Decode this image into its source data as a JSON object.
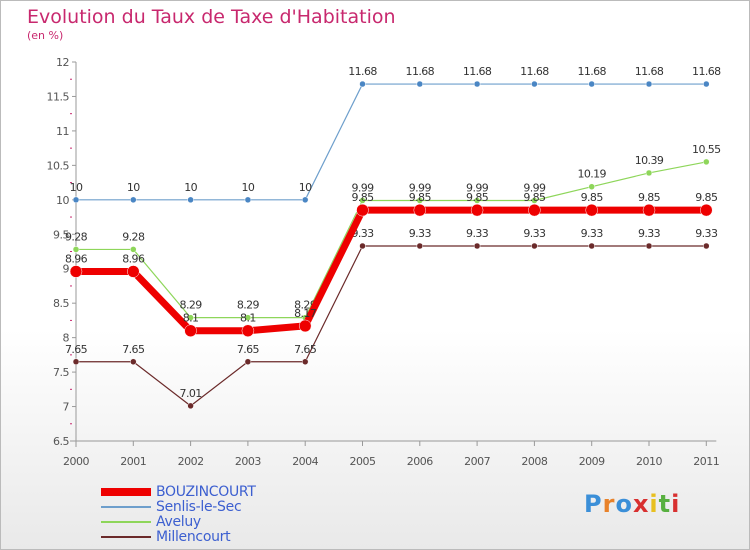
{
  "title": "Evolution du Taux de Taxe d'Habitation",
  "unit": "(en %)",
  "logo": [
    "P",
    "r",
    "o",
    "x",
    "i",
    "t",
    "i"
  ],
  "logo_colors": [
    "#3b8fd8",
    "#e8822a",
    "#3b8fd8",
    "#d83030",
    "#e8c020",
    "#58b040",
    "#d83030"
  ],
  "chart_data": {
    "type": "line",
    "x": [
      "2000",
      "2001",
      "2002",
      "2003",
      "2004",
      "2005",
      "2006",
      "2007",
      "2008",
      "2009",
      "2010",
      "2011"
    ],
    "ylim": [
      6.5,
      12
    ],
    "yticks": [
      "6.5",
      "7",
      "7.5",
      "8",
      "8.5",
      "9",
      "9.5",
      "10",
      "10.5",
      "11",
      "11.5",
      "12"
    ],
    "grid": false,
    "legend": "bottom-left",
    "series": [
      {
        "name": "Millencourt",
        "color": "#6b2a2a",
        "width": 1.2,
        "marker": "#6b2a2a",
        "markerR": 3,
        "values": [
          7.65,
          7.65,
          7.01,
          7.65,
          7.65,
          9.33,
          9.33,
          9.33,
          9.33,
          9.33,
          9.33,
          9.33
        ],
        "labels": [
          "7.65",
          "7.65",
          "7.01",
          "7.65",
          "7.65",
          "9.33",
          "9.33",
          "9.33",
          "9.33",
          "9.33",
          "9.33",
          "9.33"
        ]
      },
      {
        "name": "Aveluy",
        "color": "#8ed65a",
        "width": 1.2,
        "marker": "#8ed65a",
        "markerR": 3,
        "values": [
          9.28,
          9.28,
          8.29,
          8.29,
          8.29,
          9.99,
          9.99,
          9.99,
          9.99,
          10.19,
          10.39,
          10.55
        ],
        "labels": [
          "9.28",
          "9.28",
          "8.29",
          "8.29",
          "8.29",
          "9.99",
          "9.99",
          "9.99",
          "9.99",
          "10.19",
          "10.39",
          "10.55"
        ]
      },
      {
        "name": "Senlis-le-Sec",
        "color": "#6e9fcc",
        "width": 1.2,
        "marker": "#4a86c4",
        "markerR": 3,
        "values": [
          10,
          10,
          10,
          10,
          10,
          11.68,
          11.68,
          11.68,
          11.68,
          11.68,
          11.68,
          11.68
        ],
        "labels": [
          "10",
          "10",
          "10",
          "10",
          "10",
          "11.68",
          "11.68",
          "11.68",
          "11.68",
          "11.68",
          "11.68",
          "11.68"
        ]
      },
      {
        "name": "BOUZINCOURT",
        "color": "#ee0000",
        "width": 7,
        "marker": "#ee0000",
        "markerR": 6,
        "values": [
          8.96,
          8.96,
          8.1,
          8.1,
          8.17,
          9.85,
          9.85,
          9.85,
          9.85,
          9.85,
          9.85,
          9.85
        ],
        "labels": [
          "8.96",
          "8.96",
          "8.1",
          "8.1",
          "8.17",
          "9.85",
          "9.85",
          "9.85",
          "9.85",
          "9.85",
          "9.85",
          "9.85"
        ]
      }
    ],
    "legend_order": [
      "BOUZINCOURT",
      "Senlis-le-Sec",
      "Aveluy",
      "Millencourt"
    ]
  }
}
